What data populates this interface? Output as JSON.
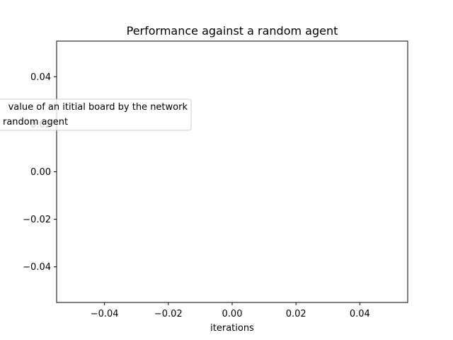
{
  "chart_data": {
    "type": "line",
    "title": "Performance against a random agent",
    "xlabel": "iterations",
    "ylabel": "",
    "xlim": [
      -0.055,
      0.055
    ],
    "ylim": [
      -0.055,
      0.055
    ],
    "x_ticks": [
      -0.04,
      -0.02,
      0.0,
      0.02,
      0.04
    ],
    "x_tick_labels": [
      "−0.04",
      "−0.02",
      "0.00",
      "0.02",
      "0.04"
    ],
    "y_ticks": [
      -0.04,
      -0.02,
      0.0,
      0.02,
      0.04
    ],
    "y_tick_labels": [
      "−0.04",
      "−0.02",
      "0.00",
      "0.02",
      "0.04"
    ],
    "grid": false,
    "legend_position": "center-left, partially outside the axes",
    "legend_entries": [
      "value of an ititial board by the network",
      "random agent"
    ],
    "series": []
  }
}
